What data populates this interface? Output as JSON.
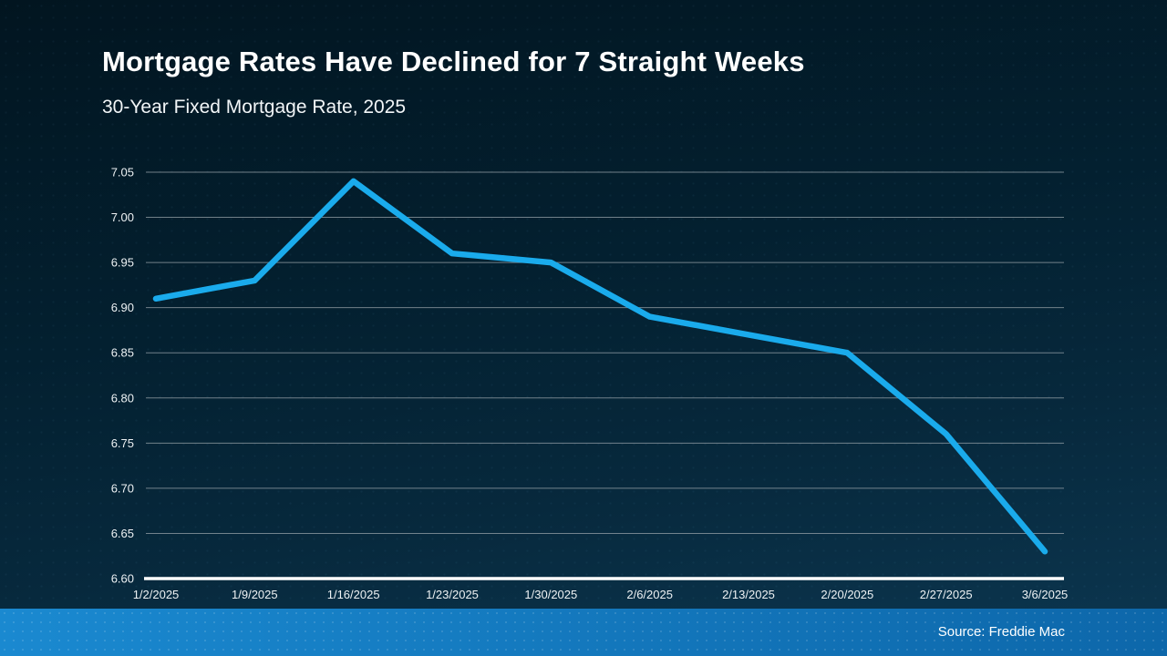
{
  "slide": {
    "title": "Mortgage Rates Have Declined for 7 Straight Weeks",
    "subtitle": "30-Year Fixed Mortgage Rate, 2025"
  },
  "chart_data": {
    "type": "line",
    "title": "30-Year Fixed Mortgage Rate, 2025",
    "categories": [
      "1/2/2025",
      "1/9/2025",
      "1/16/2025",
      "1/23/2025",
      "1/30/2025",
      "2/6/2025",
      "2/13/2025",
      "2/20/2025",
      "2/27/2025",
      "3/6/2025"
    ],
    "series": [
      {
        "name": "30-Year Fixed Mortgage Rate",
        "values": [
          6.91,
          6.93,
          7.04,
          6.96,
          6.95,
          6.89,
          6.87,
          6.85,
          6.76,
          6.63
        ]
      }
    ],
    "xlabel": "",
    "ylabel": "",
    "ylim": [
      6.6,
      7.05
    ],
    "ytick_step": 0.05,
    "grid": true,
    "legend": false,
    "line_color": "#1aabec",
    "grid_color": "#97a2a8",
    "axis_color": "#ffffff",
    "tick_label_color": "#eef2f4"
  },
  "footer": {
    "source": "Source: Freddie Mac",
    "band_color_left": "#1a89d0",
    "band_color_right": "#0d67aa"
  }
}
